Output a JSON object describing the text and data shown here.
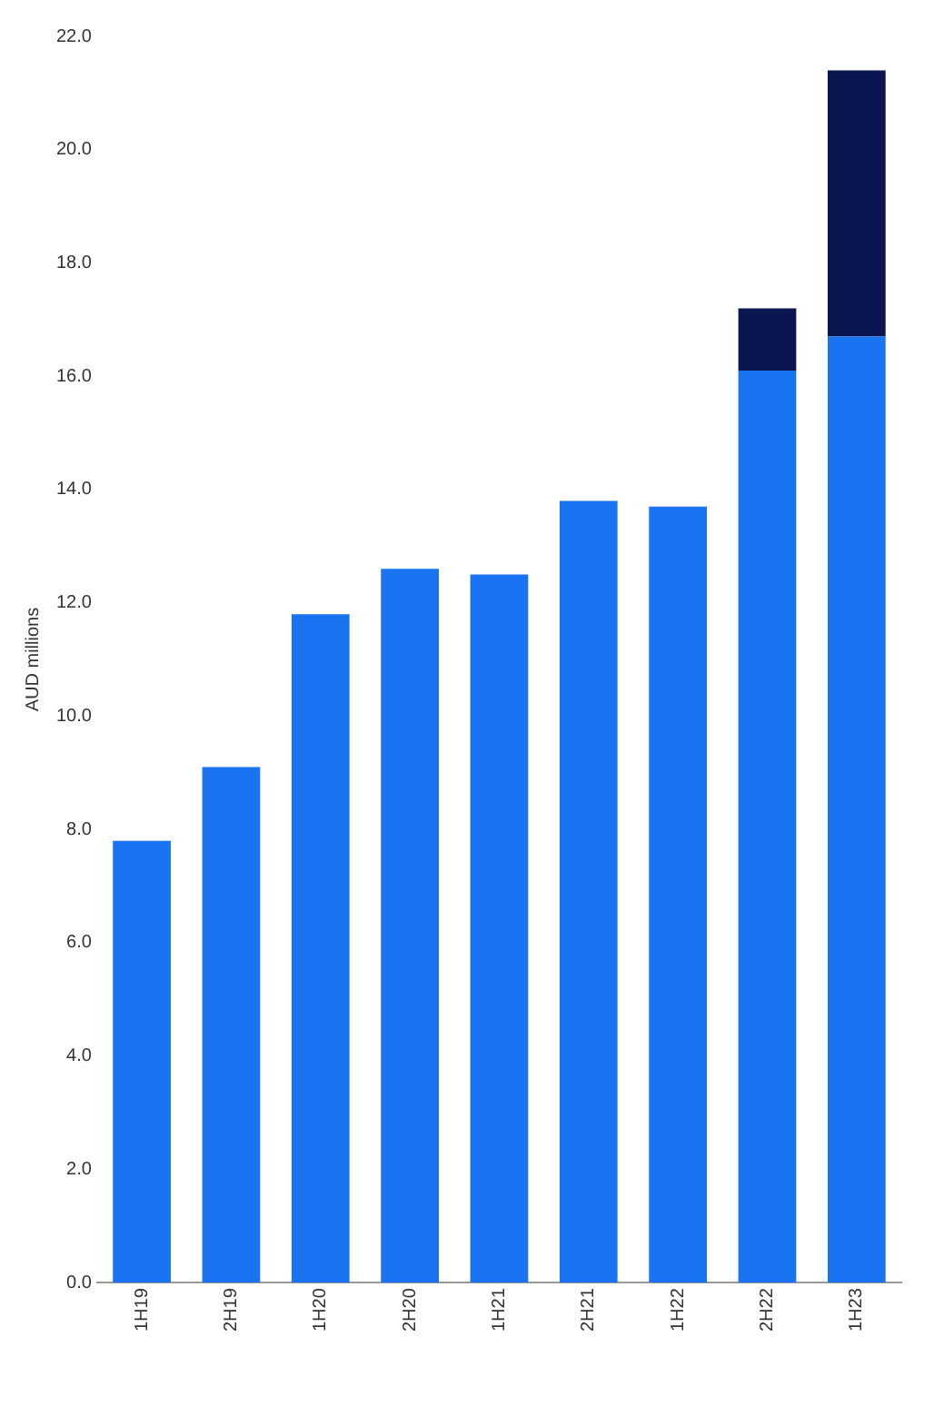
{
  "chart_data": {
    "type": "bar",
    "stacked": true,
    "ylabel": "AUD millions",
    "categories": [
      "1H19",
      "2H19",
      "1H20",
      "2H20",
      "1H21",
      "2H21",
      "1H22",
      "2H22",
      "1H23"
    ],
    "series": [
      {
        "color": "#1a73f0",
        "values": [
          7.8,
          9.1,
          11.8,
          12.6,
          12.5,
          13.8,
          13.7,
          16.1,
          16.7
        ]
      },
      {
        "color": "#0b1550",
        "values": [
          null,
          null,
          null,
          null,
          null,
          null,
          null,
          1.1,
          4.7
        ]
      }
    ],
    "ylim": [
      0,
      22
    ],
    "yticks": [
      {
        "value": 0,
        "label": "0.0"
      },
      {
        "value": 2,
        "label": "2.0"
      },
      {
        "value": 4,
        "label": "4.0"
      },
      {
        "value": 6,
        "label": "6.0"
      },
      {
        "value": 8,
        "label": "8.0"
      },
      {
        "value": 10,
        "label": "10.0"
      },
      {
        "value": 12,
        "label": "12.0"
      },
      {
        "value": 14,
        "label": "14.0"
      },
      {
        "value": 16,
        "label": "16.0"
      },
      {
        "value": 18,
        "label": "18.0"
      },
      {
        "value": 20,
        "label": "20.0"
      },
      {
        "value": 22,
        "label": "22.0"
      }
    ]
  }
}
